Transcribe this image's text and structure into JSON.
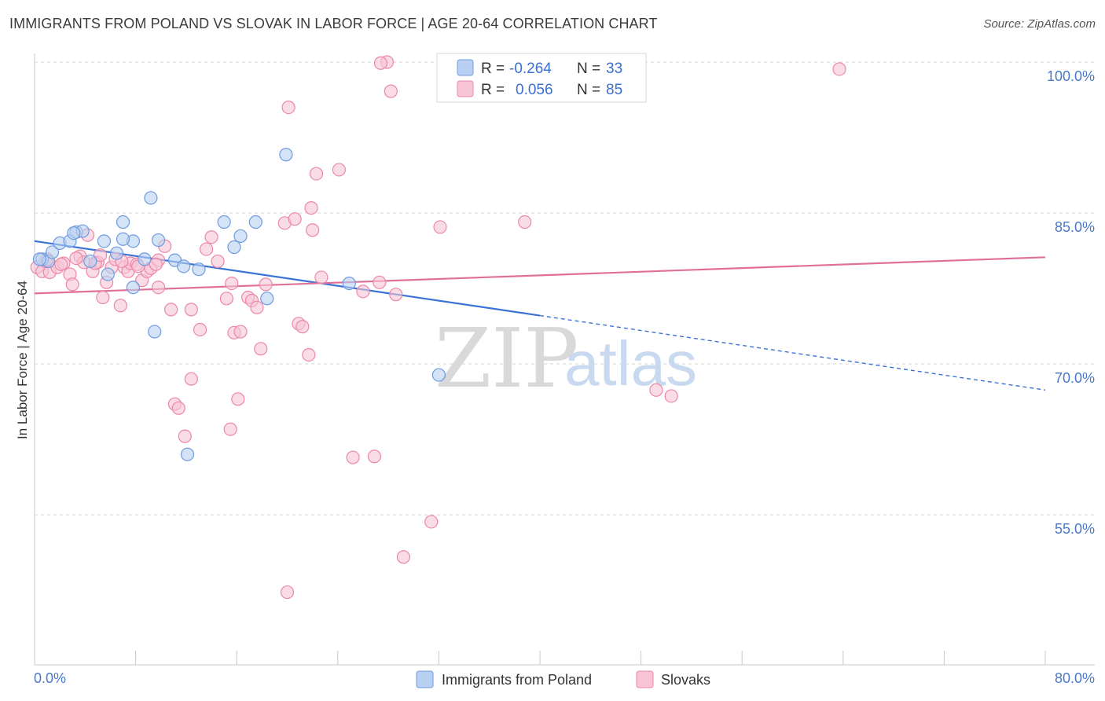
{
  "header": {
    "title": "IMMIGRANTS FROM POLAND VS SLOVAK IN LABOR FORCE | AGE 20-64 CORRELATION CHART",
    "source": "Source: ZipAtlas.com"
  },
  "chart_data": {
    "type": "scatter",
    "title": "IMMIGRANTS FROM POLAND VS SLOVAK IN LABOR FORCE | AGE 20-64 CORRELATION CHART",
    "xlabel": "",
    "ylabel": "In Labor Force | Age 20-64",
    "xlim": [
      0,
      80
    ],
    "ylim": [
      40,
      102
    ],
    "x_tick_labels": [
      "0.0%",
      "80.0%"
    ],
    "y_ticks": [
      55,
      70,
      85,
      100
    ],
    "y_tick_labels": [
      "55.0%",
      "70.0%",
      "85.0%",
      "100.0%"
    ],
    "grid": true,
    "watermark": {
      "zip": "ZIP",
      "atlas": "atlas"
    },
    "legend": {
      "placement": "top-center",
      "rows": [
        {
          "r_label": "R =",
          "r_value": "-0.264",
          "n_label": "N =",
          "n_value": "33"
        },
        {
          "r_label": "R =",
          "r_value": "0.056",
          "n_label": "N =",
          "n_value": "85"
        }
      ]
    },
    "series": [
      {
        "name": "Immigrants from Poland",
        "color": "#6f9be0",
        "fill": "#b9d0f2",
        "trend": {
          "x0": 0,
          "y0": 82.2,
          "x1": 40,
          "y1": 74.8,
          "dashed_to_x": 80,
          "dashed_to_y": 67.4,
          "color": "#3a72d6"
        },
        "points": [
          [
            0.6,
            80.4
          ],
          [
            1.1,
            80.2
          ],
          [
            1.4,
            81.1
          ],
          [
            2.0,
            82.0
          ],
          [
            2.8,
            82.2
          ],
          [
            3.3,
            83.1
          ],
          [
            3.8,
            83.2
          ],
          [
            4.4,
            80.2
          ],
          [
            5.5,
            82.2
          ],
          [
            5.8,
            78.9
          ],
          [
            6.5,
            81.0
          ],
          [
            7.0,
            84.1
          ],
          [
            7.8,
            77.6
          ],
          [
            7.8,
            82.2
          ],
          [
            8.7,
            80.4
          ],
          [
            9.2,
            86.5
          ],
          [
            9.5,
            73.2
          ],
          [
            9.8,
            82.3
          ],
          [
            11.1,
            80.3
          ],
          [
            11.8,
            79.7
          ],
          [
            12.1,
            61.0
          ],
          [
            13.0,
            79.4
          ],
          [
            15.0,
            84.1
          ],
          [
            15.8,
            81.6
          ],
          [
            16.3,
            82.7
          ],
          [
            17.5,
            84.1
          ],
          [
            18.4,
            76.5
          ],
          [
            19.9,
            90.8
          ],
          [
            24.9,
            78.0
          ],
          [
            32.0,
            68.9
          ],
          [
            0.4,
            80.4
          ],
          [
            3.1,
            83.0
          ],
          [
            7.0,
            82.4
          ]
        ]
      },
      {
        "name": "Slovaks",
        "color": "#ec87a8",
        "fill": "#f7c5d5",
        "trend": {
          "x0": 0,
          "y0": 77.0,
          "x1": 80,
          "y1": 80.6,
          "color": "#e0709b"
        },
        "points": [
          [
            0.2,
            79.6
          ],
          [
            0.6,
            79.2
          ],
          [
            0.9,
            80.2
          ],
          [
            1.2,
            79.1
          ],
          [
            1.8,
            79.6
          ],
          [
            2.3,
            80.0
          ],
          [
            2.8,
            78.9
          ],
          [
            3.0,
            77.9
          ],
          [
            3.6,
            80.7
          ],
          [
            3.9,
            80.1
          ],
          [
            4.2,
            82.8
          ],
          [
            4.6,
            79.2
          ],
          [
            5.0,
            80.1
          ],
          [
            5.4,
            76.6
          ],
          [
            5.7,
            78.1
          ],
          [
            6.1,
            79.6
          ],
          [
            6.4,
            80.4
          ],
          [
            6.8,
            75.8
          ],
          [
            7.1,
            79.6
          ],
          [
            7.4,
            79.2
          ],
          [
            7.6,
            80.0
          ],
          [
            8.1,
            79.9
          ],
          [
            8.5,
            78.3
          ],
          [
            8.9,
            79.2
          ],
          [
            9.2,
            79.5
          ],
          [
            9.8,
            77.6
          ],
          [
            9.8,
            80.3
          ],
          [
            10.3,
            81.7
          ],
          [
            10.8,
            75.4
          ],
          [
            11.1,
            66.0
          ],
          [
            11.4,
            65.6
          ],
          [
            11.9,
            62.8
          ],
          [
            12.4,
            75.4
          ],
          [
            12.4,
            68.5
          ],
          [
            13.1,
            73.4
          ],
          [
            13.6,
            81.4
          ],
          [
            14.0,
            82.6
          ],
          [
            14.5,
            80.2
          ],
          [
            15.2,
            76.5
          ],
          [
            15.5,
            63.5
          ],
          [
            15.6,
            78.0
          ],
          [
            15.8,
            73.1
          ],
          [
            16.1,
            66.5
          ],
          [
            16.3,
            73.2
          ],
          [
            16.9,
            76.6
          ],
          [
            17.2,
            76.3
          ],
          [
            17.6,
            75.6
          ],
          [
            17.9,
            71.5
          ],
          [
            18.3,
            77.9
          ],
          [
            19.8,
            84.0
          ],
          [
            20.1,
            95.5
          ],
          [
            20.6,
            84.4
          ],
          [
            20.9,
            74.0
          ],
          [
            21.2,
            73.7
          ],
          [
            21.7,
            70.9
          ],
          [
            21.9,
            85.5
          ],
          [
            22.0,
            83.3
          ],
          [
            22.3,
            88.9
          ],
          [
            22.7,
            78.6
          ],
          [
            24.1,
            89.3
          ],
          [
            25.2,
            60.7
          ],
          [
            26.0,
            77.2
          ],
          [
            26.9,
            60.8
          ],
          [
            27.3,
            78.1
          ],
          [
            27.9,
            100.0
          ],
          [
            28.2,
            97.1
          ],
          [
            28.6,
            76.9
          ],
          [
            29.2,
            50.8
          ],
          [
            31.4,
            54.3
          ],
          [
            32.1,
            83.6
          ],
          [
            35.6,
            99.9
          ],
          [
            38.8,
            84.1
          ],
          [
            49.2,
            67.4
          ],
          [
            50.4,
            66.8
          ],
          [
            63.7,
            99.3
          ],
          [
            20.0,
            47.3
          ],
          [
            27.4,
            99.9
          ],
          [
            1.0,
            80.4
          ],
          [
            2.1,
            79.9
          ],
          [
            3.3,
            80.5
          ],
          [
            4.8,
            80.0
          ],
          [
            5.2,
            80.8
          ],
          [
            6.9,
            80.2
          ],
          [
            8.2,
            79.7
          ],
          [
            9.6,
            79.9
          ]
        ]
      }
    ]
  },
  "bottom_legend": {
    "items": [
      {
        "label": "Immigrants from Poland"
      },
      {
        "label": "Slovaks"
      }
    ]
  }
}
